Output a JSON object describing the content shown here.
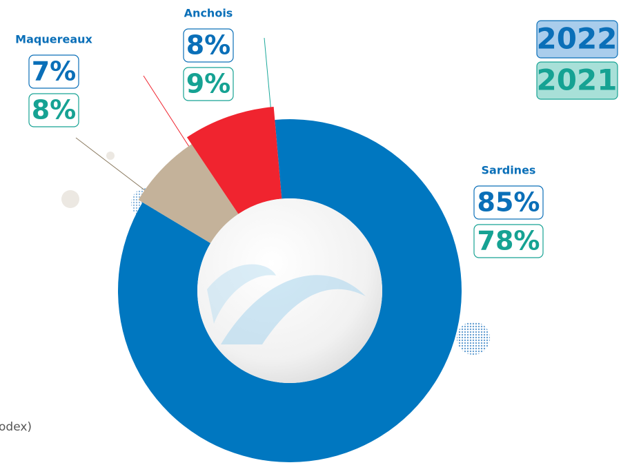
{
  "chart_data": {
    "type": "pie",
    "categories": [
      "Sardines",
      "Maquereaux",
      "Anchois"
    ],
    "colors": [
      "#0077c0",
      "#c4b29a",
      "#f0242f"
    ],
    "series": [
      {
        "name": "2022",
        "color": "#0a6fb8",
        "values": [
          85,
          7,
          8
        ],
        "value_labels": [
          "85%",
          "7%",
          "8%"
        ]
      },
      {
        "name": "2021",
        "color": "#16a293",
        "values": [
          78,
          8,
          9
        ],
        "value_labels": [
          "78%",
          "8%",
          "9%"
        ]
      }
    ],
    "note": "odex)"
  }
}
